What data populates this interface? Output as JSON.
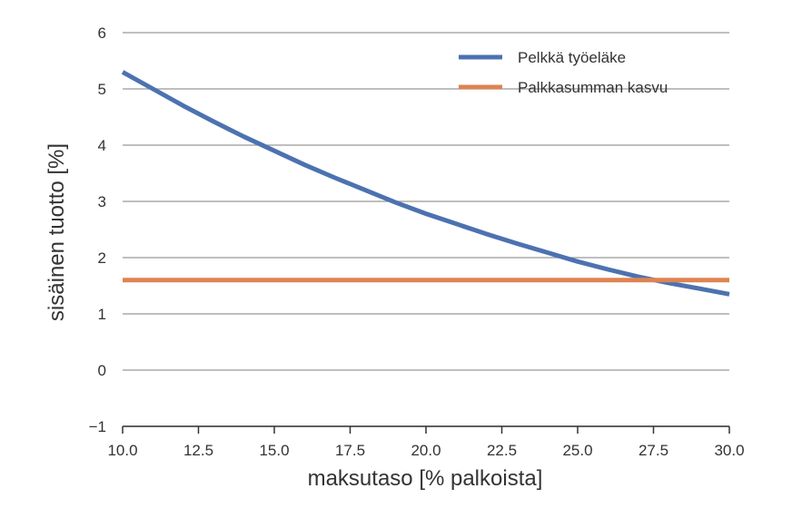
{
  "chart_data": {
    "type": "line",
    "title": "",
    "xlabel": "maksutaso [% palkoista]",
    "ylabel": "sisäinen tuotto [%]",
    "xlim": [
      10.0,
      30.0
    ],
    "ylim": [
      -1,
      6
    ],
    "xticks": [
      10.0,
      12.5,
      15.0,
      17.5,
      20.0,
      22.5,
      25.0,
      27.5,
      30.0
    ],
    "xtick_labels": [
      "10.0",
      "12.5",
      "15.0",
      "17.5",
      "20.0",
      "22.5",
      "25.0",
      "27.5",
      "30.0"
    ],
    "yticks": [
      -1,
      0,
      1,
      2,
      3,
      4,
      5,
      6
    ],
    "ytick_labels": [
      "−1",
      "0",
      "1",
      "2",
      "3",
      "4",
      "5",
      "6"
    ],
    "grid": "horizontal",
    "legend_position": "top-right",
    "series": [
      {
        "name": "Pelkkä työeläke",
        "color": "#4c72b0",
        "x": [
          10,
          11,
          12,
          13,
          14,
          15,
          16,
          17,
          18,
          19,
          20,
          21,
          22,
          23,
          24,
          25,
          26,
          27,
          28,
          29,
          30
        ],
        "y": [
          5.3,
          5.0,
          4.7,
          4.42,
          4.15,
          3.9,
          3.65,
          3.42,
          3.2,
          2.98,
          2.78,
          2.6,
          2.42,
          2.25,
          2.09,
          1.93,
          1.79,
          1.66,
          1.55,
          1.45,
          1.35
        ]
      },
      {
        "name": "Palkkasumman kasvu",
        "color": "#dd8452",
        "x": [
          10,
          30
        ],
        "y": [
          1.6,
          1.6
        ]
      }
    ]
  }
}
